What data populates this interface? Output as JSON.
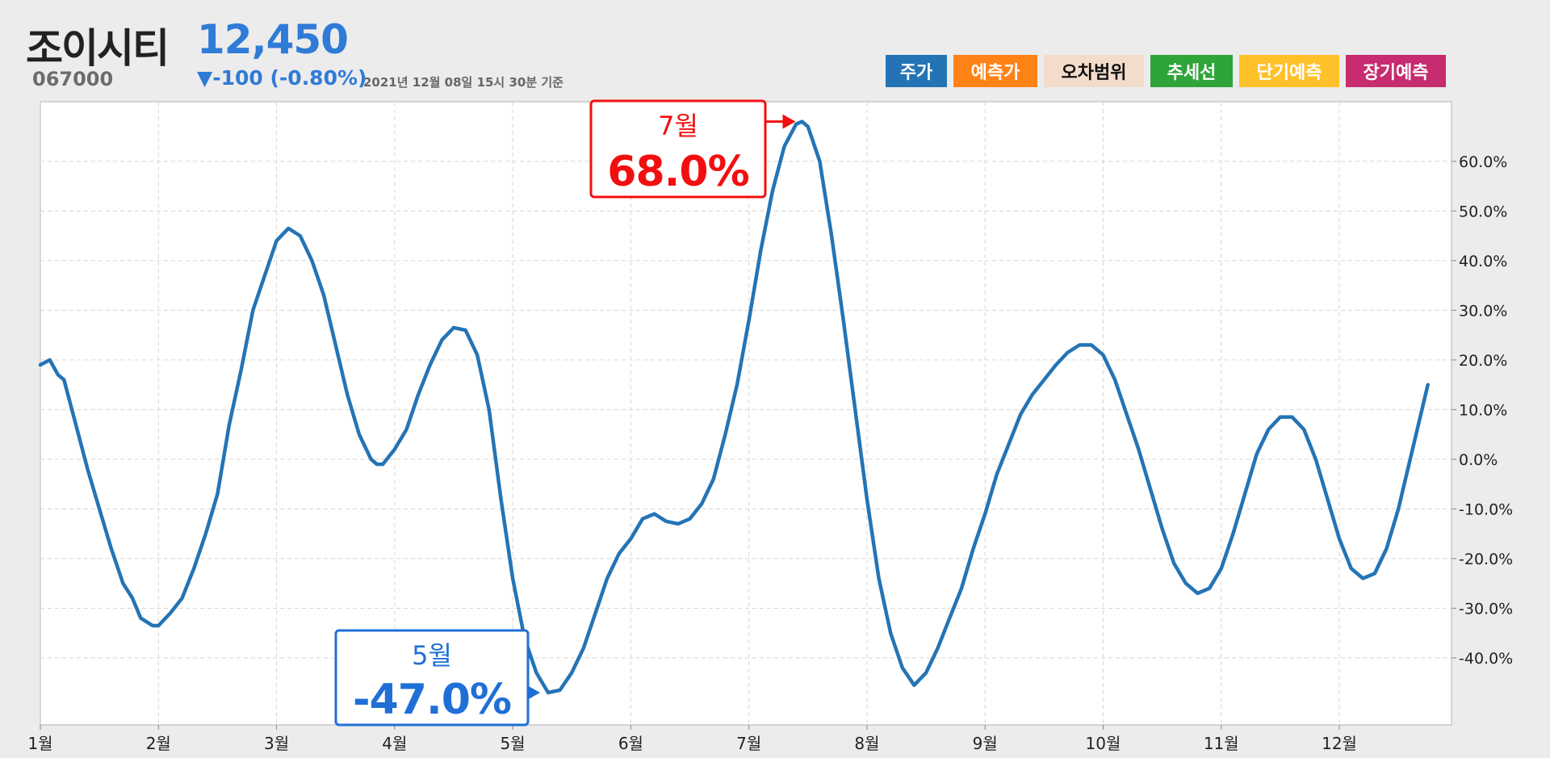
{
  "header": {
    "stock_name": "조이시티",
    "stock_code": "067000",
    "price": "12,450",
    "change": "▼-100 (-0.80%)",
    "timestamp": "2021년 12월 08일 15시 30분 기준"
  },
  "legend": [
    {
      "label": "주가",
      "bg": "#2474b5",
      "fg": "#ffffff",
      "width": 76
    },
    {
      "label": "예측가",
      "bg": "#fe8216",
      "fg": "#ffffff",
      "width": 104
    },
    {
      "label": "오차범위",
      "bg": "#f3dccb",
      "fg": "#111111",
      "width": 124
    },
    {
      "label": "추세선",
      "bg": "#2ea439",
      "fg": "#ffffff",
      "width": 102
    },
    {
      "label": "단기예측",
      "bg": "#ffc12a",
      "fg": "#ffffff",
      "width": 124
    },
    {
      "label": "장기예측",
      "bg": "#c62c6f",
      "fg": "#ffffff",
      "width": 124
    }
  ],
  "annotations": {
    "max": {
      "month": "7월",
      "value": "68.0%",
      "color": "#f20f0f"
    },
    "min": {
      "month": "5월",
      "value": "-47.0%",
      "color": "#1f6fd6"
    }
  },
  "chart_data": {
    "type": "line",
    "series": [
      {
        "color": "#2474b5",
        "points": [
          [
            1.0,
            19
          ],
          [
            1.08,
            20
          ],
          [
            1.15,
            17
          ],
          [
            1.2,
            16
          ],
          [
            1.3,
            7
          ],
          [
            1.4,
            -2
          ],
          [
            1.5,
            -10
          ],
          [
            1.6,
            -18
          ],
          [
            1.7,
            -25
          ],
          [
            1.78,
            -28
          ],
          [
            1.85,
            -32
          ],
          [
            1.95,
            -33.5
          ],
          [
            2.0,
            -33.5
          ],
          [
            2.1,
            -31
          ],
          [
            2.2,
            -28
          ],
          [
            2.3,
            -22
          ],
          [
            2.4,
            -15
          ],
          [
            2.5,
            -7
          ],
          [
            2.6,
            7
          ],
          [
            2.7,
            18
          ],
          [
            2.8,
            30
          ],
          [
            2.9,
            37
          ],
          [
            3.0,
            44
          ],
          [
            3.1,
            46.5
          ],
          [
            3.2,
            45
          ],
          [
            3.3,
            40
          ],
          [
            3.4,
            33
          ],
          [
            3.5,
            23
          ],
          [
            3.6,
            13
          ],
          [
            3.7,
            5
          ],
          [
            3.8,
            0
          ],
          [
            3.85,
            -1
          ],
          [
            3.9,
            -1
          ],
          [
            4.0,
            2
          ],
          [
            4.1,
            6
          ],
          [
            4.2,
            13
          ],
          [
            4.3,
            19
          ],
          [
            4.4,
            24
          ],
          [
            4.5,
            26.5
          ],
          [
            4.6,
            26
          ],
          [
            4.7,
            21
          ],
          [
            4.8,
            10
          ],
          [
            4.9,
            -8
          ],
          [
            5.0,
            -24
          ],
          [
            5.1,
            -36
          ],
          [
            5.2,
            -43
          ],
          [
            5.3,
            -47
          ],
          [
            5.4,
            -46.5
          ],
          [
            5.5,
            -43
          ],
          [
            5.6,
            -38
          ],
          [
            5.7,
            -31
          ],
          [
            5.8,
            -24
          ],
          [
            5.9,
            -19
          ],
          [
            6.0,
            -16
          ],
          [
            6.1,
            -12
          ],
          [
            6.2,
            -11
          ],
          [
            6.3,
            -12.5
          ],
          [
            6.4,
            -13
          ],
          [
            6.5,
            -12
          ],
          [
            6.6,
            -9
          ],
          [
            6.7,
            -4
          ],
          [
            6.8,
            5
          ],
          [
            6.9,
            15
          ],
          [
            7.0,
            28
          ],
          [
            7.1,
            42
          ],
          [
            7.2,
            54
          ],
          [
            7.3,
            63
          ],
          [
            7.4,
            67.5
          ],
          [
            7.45,
            68
          ],
          [
            7.5,
            67
          ],
          [
            7.6,
            60
          ],
          [
            7.7,
            45
          ],
          [
            7.8,
            28
          ],
          [
            7.9,
            10
          ],
          [
            8.0,
            -8
          ],
          [
            8.1,
            -24
          ],
          [
            8.2,
            -35
          ],
          [
            8.3,
            -42
          ],
          [
            8.4,
            -45.5
          ],
          [
            8.5,
            -43
          ],
          [
            8.6,
            -38
          ],
          [
            8.7,
            -32
          ],
          [
            8.8,
            -26
          ],
          [
            8.9,
            -18
          ],
          [
            9.0,
            -11
          ],
          [
            9.1,
            -3
          ],
          [
            9.2,
            3
          ],
          [
            9.3,
            9
          ],
          [
            9.4,
            13
          ],
          [
            9.5,
            16
          ],
          [
            9.6,
            19
          ],
          [
            9.7,
            21.5
          ],
          [
            9.8,
            23
          ],
          [
            9.9,
            23
          ],
          [
            10.0,
            21
          ],
          [
            10.1,
            16
          ],
          [
            10.2,
            9
          ],
          [
            10.3,
            2
          ],
          [
            10.4,
            -6
          ],
          [
            10.5,
            -14
          ],
          [
            10.6,
            -21
          ],
          [
            10.7,
            -25
          ],
          [
            10.8,
            -27
          ],
          [
            10.9,
            -26
          ],
          [
            11.0,
            -22
          ],
          [
            11.1,
            -15
          ],
          [
            11.2,
            -7
          ],
          [
            11.3,
            1
          ],
          [
            11.4,
            6
          ],
          [
            11.5,
            8.5
          ],
          [
            11.6,
            8.5
          ],
          [
            11.7,
            6
          ],
          [
            11.8,
            0
          ],
          [
            11.9,
            -8
          ],
          [
            12.0,
            -16
          ],
          [
            12.1,
            -22
          ],
          [
            12.2,
            -24
          ],
          [
            12.3,
            -23
          ],
          [
            12.4,
            -18
          ],
          [
            12.5,
            -10
          ],
          [
            12.6,
            0
          ],
          [
            12.7,
            10
          ],
          [
            12.75,
            15
          ]
        ]
      }
    ],
    "x_ticks": [
      {
        "x": 1,
        "label": "1월"
      },
      {
        "x": 2,
        "label": "2월"
      },
      {
        "x": 3,
        "label": "3월"
      },
      {
        "x": 4,
        "label": "4월"
      },
      {
        "x": 5,
        "label": "5월"
      },
      {
        "x": 6,
        "label": "6월"
      },
      {
        "x": 7,
        "label": "7월"
      },
      {
        "x": 8,
        "label": "8월"
      },
      {
        "x": 9,
        "label": "9월"
      },
      {
        "x": 10,
        "label": "10월"
      },
      {
        "x": 11,
        "label": "11월"
      },
      {
        "x": 12,
        "label": "12월"
      }
    ],
    "y_ticks": [
      {
        "y": 60,
        "label": "60.0%"
      },
      {
        "y": 50,
        "label": "50.0%"
      },
      {
        "y": 40,
        "label": "40.0%"
      },
      {
        "y": 30,
        "label": "30.0%"
      },
      {
        "y": 20,
        "label": "20.0%"
      },
      {
        "y": 10,
        "label": "10.0%"
      },
      {
        "y": 0,
        "label": "0.0%"
      },
      {
        "y": -10,
        "label": "-10.0%"
      },
      {
        "y": -20,
        "label": "-20.0%"
      },
      {
        "y": -30,
        "label": "-30.0%"
      },
      {
        "y": -40,
        "label": "-40.0%"
      }
    ],
    "xlim": [
      1,
      12.95
    ],
    "ylim": [
      -53.5,
      72
    ],
    "y_axis_position": "right",
    "grid": true
  }
}
